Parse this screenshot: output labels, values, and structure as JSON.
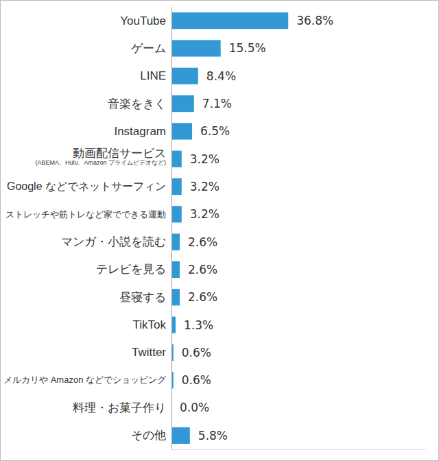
{
  "chart_data": {
    "type": "bar",
    "orientation": "horizontal",
    "categories": [
      "YouTube",
      "ゲーム",
      "LINE",
      "音楽をきく",
      "Instagram",
      "動画配信サービス\n(ABEMA、Hulu、Amazon プライムビデオなど)",
      "Google などでネットサーフィン",
      "ストレッチや筋トレなど家でできる運動",
      "マンガ・小説を読む",
      "テレビを見る",
      "昼寝する",
      "TikTok",
      "Twitter",
      "メルカリや Amazon などでショッピング",
      "料理・お菓子作り",
      "その他"
    ],
    "values": [
      36.8,
      15.5,
      8.4,
      7.1,
      6.5,
      3.2,
      3.2,
      3.2,
      2.6,
      2.6,
      2.6,
      1.3,
      0.6,
      0.6,
      0.0,
      5.8
    ],
    "value_labels": [
      "36.8%",
      "15.5%",
      "8.4%",
      "7.1%",
      "6.5%",
      "3.2%",
      "3.2%",
      "3.2%",
      "2.6%",
      "2.6%",
      "2.6%",
      "1.3%",
      "0.6%",
      "0.6%",
      "0.0%",
      "5.8%"
    ],
    "color": "#3399d6",
    "xlim": [
      0,
      80
    ],
    "data_labels": true,
    "tick_labels": "y",
    "grid": false
  }
}
